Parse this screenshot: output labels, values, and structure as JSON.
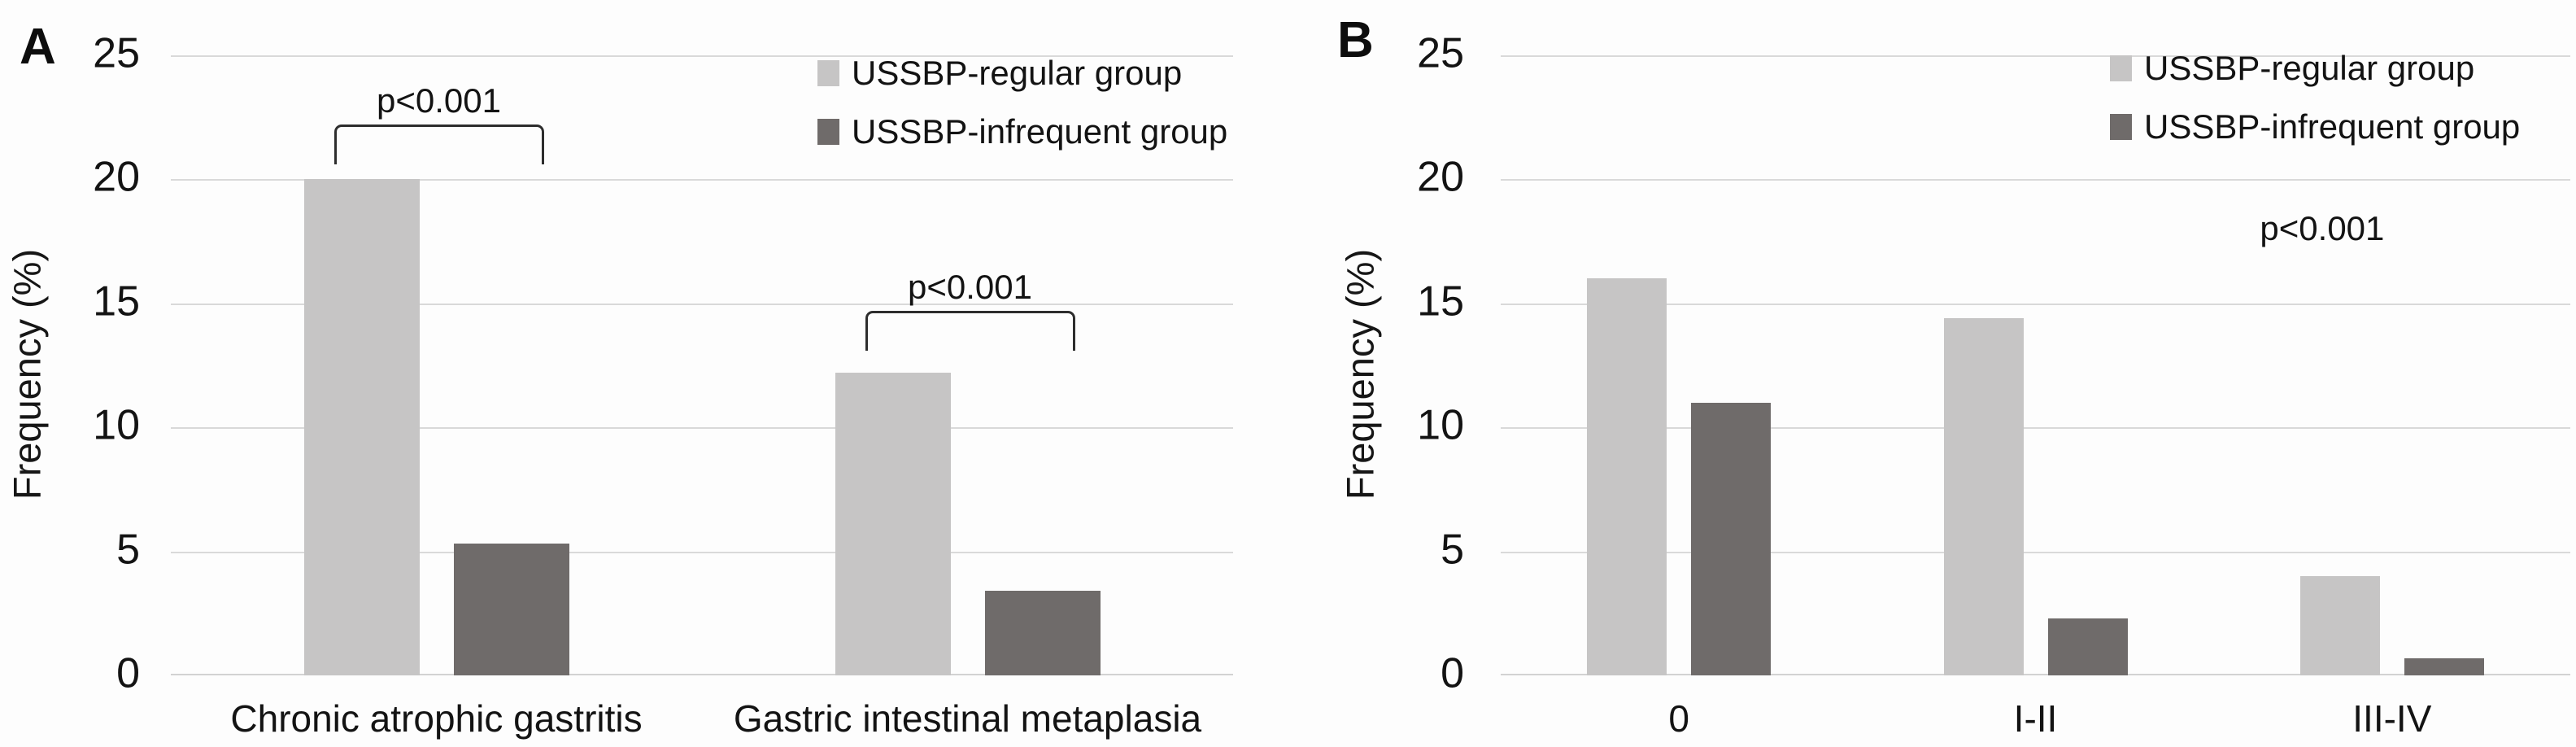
{
  "chart_data": [
    {
      "type": "bar",
      "panel_label": "A",
      "title": "",
      "xlabel": "",
      "ylabel": "Frequency (%)",
      "ylim": [
        0,
        25
      ],
      "yticks": [
        25,
        20,
        15,
        10,
        5,
        0
      ],
      "grid": true,
      "legend_position": "top-right",
      "categories": [
        "Chronic atrophic gastritis",
        "Gastric intestinal metaplasia"
      ],
      "series": [
        {
          "name": "USSBP-regular group",
          "color": "#c6c5c5",
          "values": [
            20.0,
            12.2
          ]
        },
        {
          "name": "USSBP-infrequent group",
          "color": "#6f6b6a",
          "values": [
            5.3,
            3.4
          ]
        }
      ],
      "annotations": [
        {
          "type": "bracket",
          "text": "p<0.001",
          "category": "Chronic atrophic gastritis",
          "bracket_top_value": 22.2
        },
        {
          "type": "bracket",
          "text": "p<0.001",
          "category": "Gastric intestinal metaplasia",
          "bracket_top_value": 14.7
        }
      ]
    },
    {
      "type": "bar",
      "panel_label": "B",
      "title": "",
      "xlabel": "",
      "ylabel": "Frequency (%)",
      "ylim": [
        0,
        25
      ],
      "yticks": [
        25,
        20,
        15,
        10,
        5,
        0
      ],
      "grid": true,
      "legend_position": "top-right",
      "categories": [
        "0",
        "I-II",
        "III-IV"
      ],
      "series": [
        {
          "name": "USSBP-regular group",
          "color": "#c6c5c5",
          "values": [
            16.0,
            14.4,
            4.0
          ]
        },
        {
          "name": "USSBP-infrequent group",
          "color": "#6f6b6a",
          "values": [
            11.0,
            2.3,
            0.7
          ]
        }
      ],
      "annotations": [
        {
          "type": "text",
          "text": "p<0.001",
          "center_value": 18.0
        }
      ]
    }
  ],
  "colors": {
    "regular_group": "#c6c5c5",
    "infrequent_group": "#6f6b6a",
    "gridline": "#d9d9d9",
    "text": "#1c1c1c"
  }
}
